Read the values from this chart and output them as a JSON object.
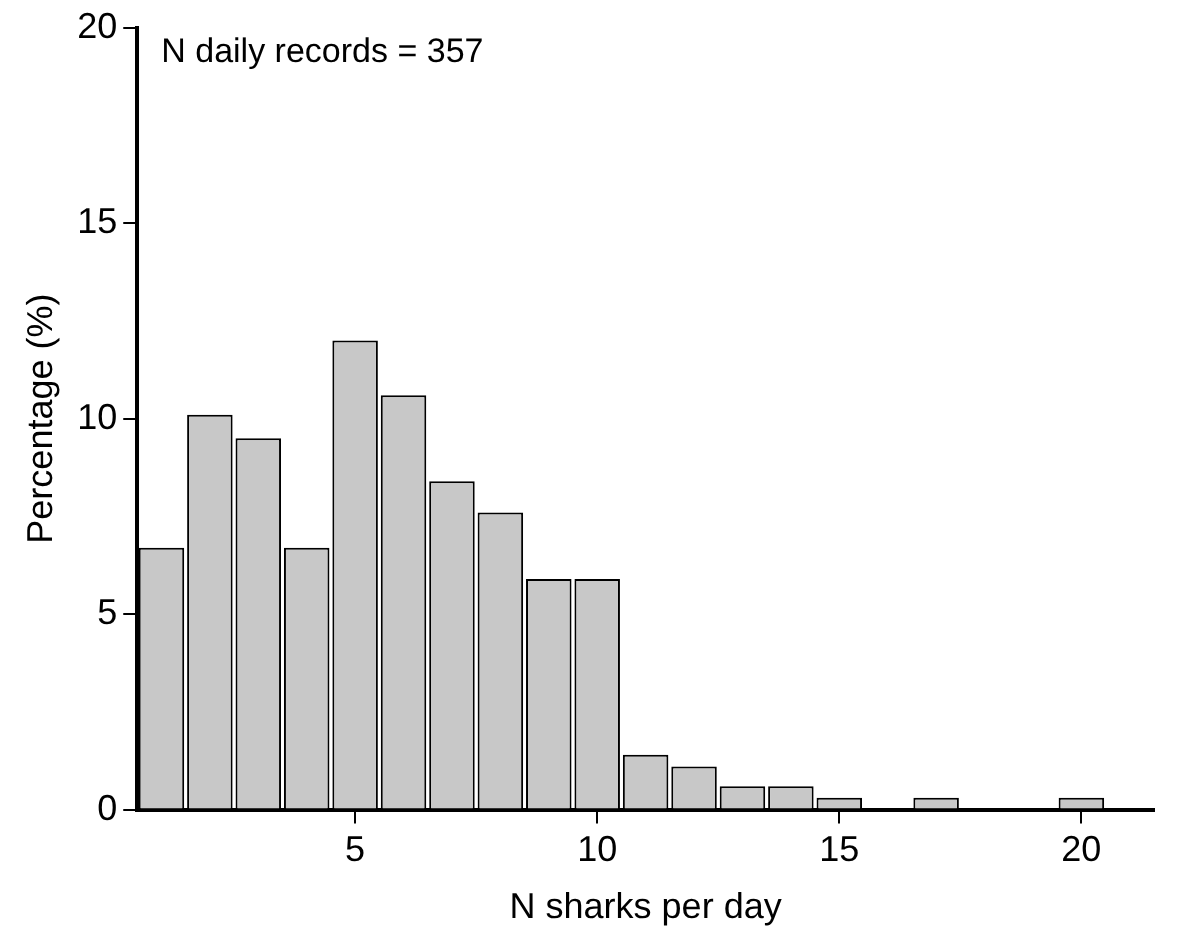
{
  "chart_data": {
    "type": "histogram",
    "xlabel": "N sharks per day",
    "ylabel": "Percentage (%)",
    "annotations": [
      "N daily records = 357"
    ],
    "bins": [
      0.5,
      1.5,
      2.5,
      3.5,
      4.5,
      5.5,
      6.5,
      7.5,
      8.5,
      9.5,
      10.5,
      11.5,
      12.5,
      13.5,
      14.5,
      15.5,
      16.5,
      17.5,
      18.5,
      19.5,
      20.5
    ],
    "values": [
      6.7,
      10.1,
      9.5,
      6.7,
      12.0,
      10.6,
      8.4,
      7.6,
      5.9,
      5.9,
      1.4,
      1.1,
      0.6,
      0.6,
      0.3,
      0,
      0.3,
      0,
      0,
      0.3
    ],
    "color": "#c8c8c8",
    "xlim": [
      0.5,
      21.5
    ],
    "xticks": [
      5,
      10,
      15,
      20
    ],
    "ylim": [
      0,
      20
    ],
    "yticks": [
      0,
      5,
      10,
      15,
      20
    ],
    "grid": false,
    "legend": false
  }
}
